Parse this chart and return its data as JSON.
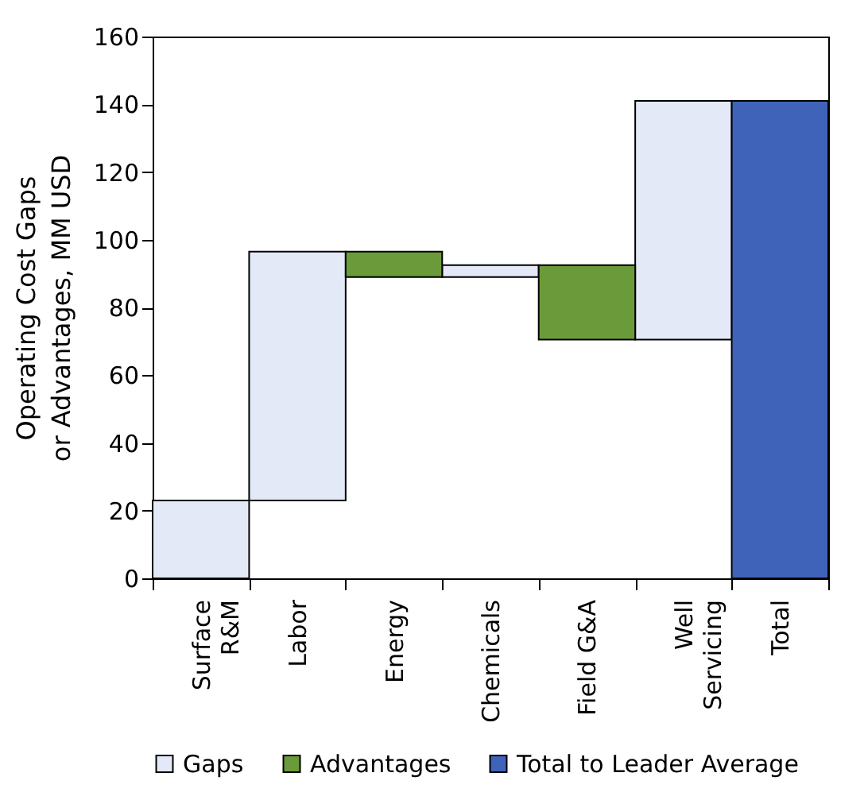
{
  "chart_data": {
    "type": "bar",
    "ylabel": "Operating Cost Gaps\nor Advantages, MM USD",
    "categories": [
      "Surface\nR&M",
      "Labor",
      "Energy",
      "Chemicals",
      "Field G&A",
      "Well\nServicing",
      "Total"
    ],
    "series": [
      {
        "name": "Gaps",
        "color": "#e3e9f7",
        "base": [
          0,
          23,
          null,
          89,
          null,
          70.5,
          null
        ],
        "values": [
          23,
          73.5,
          null,
          3.5,
          null,
          70.5,
          null
        ]
      },
      {
        "name": "Advantages",
        "color": "#6b9a3a",
        "base": [
          null,
          null,
          89,
          null,
          70.5,
          null,
          null
        ],
        "values": [
          null,
          null,
          7.5,
          null,
          22,
          null,
          null
        ]
      },
      {
        "name": "Total to Leader Average",
        "color": "#3f63b8",
        "values": [
          null,
          null,
          null,
          null,
          null,
          null,
          141
        ]
      }
    ],
    "ylim": [
      0,
      160
    ],
    "yticks": [
      0,
      20,
      40,
      60,
      80,
      100,
      120,
      140,
      160
    ],
    "grid": false,
    "legend": "bottom"
  }
}
